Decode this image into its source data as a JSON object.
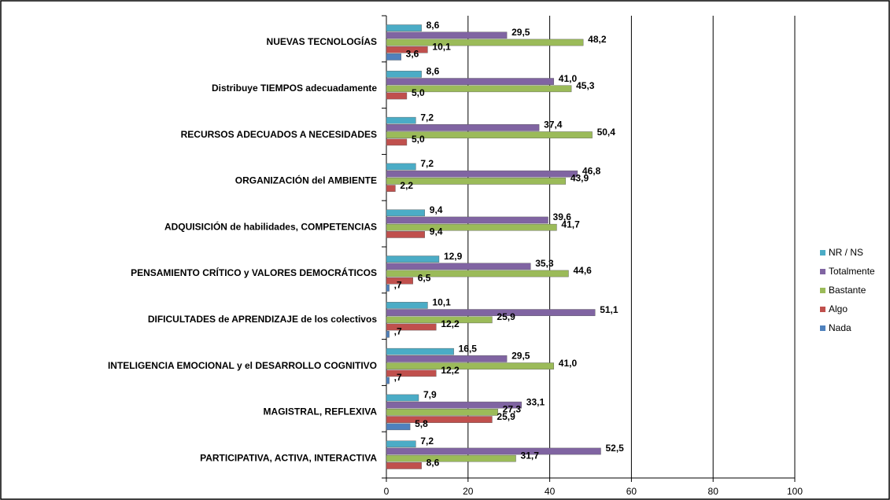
{
  "chart_data": {
    "type": "barh",
    "categories": [
      "NUEVAS TECNOLOGÍAS",
      "Distribuye TIEMPOS  adecuadamente",
      "RECURSOS ADECUADOS A  NECESIDADES",
      "ORGANIZACIÓN del AMBIENTE",
      "ADQUISICIÓN de habilidades, COMPETENCIAS",
      "PENSAMIENTO CRÍTICO y  VALORES DEMOCRÁTICOS",
      "DIFICULTADES de APRENDIZAJE de los colectivos",
      "INTELIGENCIA EMOCIONAL y el DESARROLLO COGNITIVO",
      "MAGISTRAL, REFLEXIVA",
      "PARTICIPATIVA, ACTIVA, INTERACTIVA"
    ],
    "series": [
      {
        "name": "NR / NS",
        "color": "#4bacc6",
        "values": [
          8.6,
          8.6,
          7.2,
          7.2,
          9.4,
          12.9,
          10.1,
          16.5,
          7.9,
          7.2
        ],
        "value_labels": [
          "8,6",
          "8,6",
          "7,2",
          "7,2",
          "9,4",
          "12,9",
          "10,1",
          "16,5",
          "7,9",
          "7,2"
        ]
      },
      {
        "name": "Totalmente",
        "color": "#8064a2",
        "values": [
          29.5,
          41.0,
          37.4,
          46.8,
          39.6,
          35.3,
          51.1,
          29.5,
          33.1,
          52.5
        ],
        "value_labels": [
          "29,5",
          "41,0",
          "37,4",
          "46,8",
          "39,6",
          "35,3",
          "51,1",
          "29,5",
          "33,1",
          "52,5"
        ]
      },
      {
        "name": "Bastante",
        "color": "#9bbb59",
        "values": [
          48.2,
          45.3,
          50.4,
          43.9,
          41.7,
          44.6,
          25.9,
          41.0,
          27.3,
          31.7
        ],
        "value_labels": [
          "48,2",
          "45,3",
          "50,4",
          "43,9",
          "41,7",
          "44,6",
          "25,9",
          "41,0",
          "27,3",
          "31,7"
        ]
      },
      {
        "name": "Algo",
        "color": "#c0504d",
        "values": [
          10.1,
          5.0,
          5.0,
          2.2,
          9.4,
          6.5,
          12.2,
          12.2,
          25.9,
          8.6
        ],
        "value_labels": [
          "10,1",
          "5,0",
          "5,0",
          "2,2",
          "9,4",
          "6,5",
          "12,2",
          "12,2",
          "25,9",
          "8,6"
        ]
      },
      {
        "name": "Nada",
        "color": "#4f81bd",
        "values": [
          3.6,
          null,
          null,
          null,
          null,
          0.7,
          0.7,
          0.7,
          5.8,
          null
        ],
        "value_labels": [
          "3,6",
          null,
          null,
          null,
          null,
          ",7",
          ",7",
          ",7",
          "5,8",
          null
        ]
      }
    ],
    "xlim": [
      0,
      100
    ],
    "xticks": [
      0,
      20,
      40,
      60,
      80,
      100
    ],
    "grid": true,
    "legend": "right"
  }
}
